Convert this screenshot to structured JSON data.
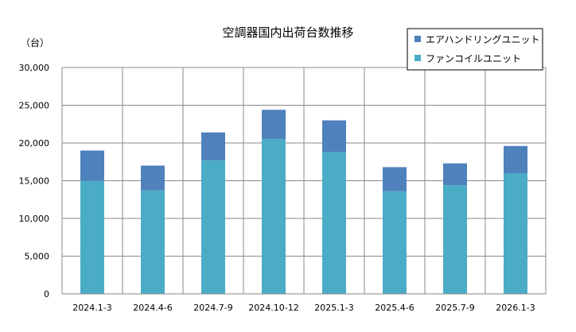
{
  "chart_data": {
    "type": "bar",
    "stacked": true,
    "title": "空調器国内出荷台数推移",
    "ylabel": "（台）",
    "xlabel": "",
    "ylim": [
      0,
      30000
    ],
    "yticks": [
      0,
      5000,
      10000,
      15000,
      20000,
      25000,
      30000
    ],
    "ytick_labels": [
      "0",
      "5,000",
      "10,000",
      "15,000",
      "20,000",
      "25,000",
      "30,000"
    ],
    "grid": true,
    "legend_position": "top-right",
    "categories": [
      "2024.1-3",
      "2024.4-6",
      "2024.7-9",
      "2024.10-12",
      "2025.1-3",
      "2025.4-6",
      "2025.7-9",
      "2026.1-3"
    ],
    "series": [
      {
        "name": "ファンコイルユニット",
        "color": "#4bacc6",
        "values": [
          15000,
          13700,
          17700,
          20500,
          18800,
          13600,
          14400,
          16000
        ]
      },
      {
        "name": "エアハンドリングユニット",
        "color": "#4f81bd",
        "values": [
          4000,
          3300,
          3700,
          3900,
          4200,
          3200,
          2900,
          3600
        ]
      }
    ],
    "legend_order": [
      1,
      0
    ]
  }
}
